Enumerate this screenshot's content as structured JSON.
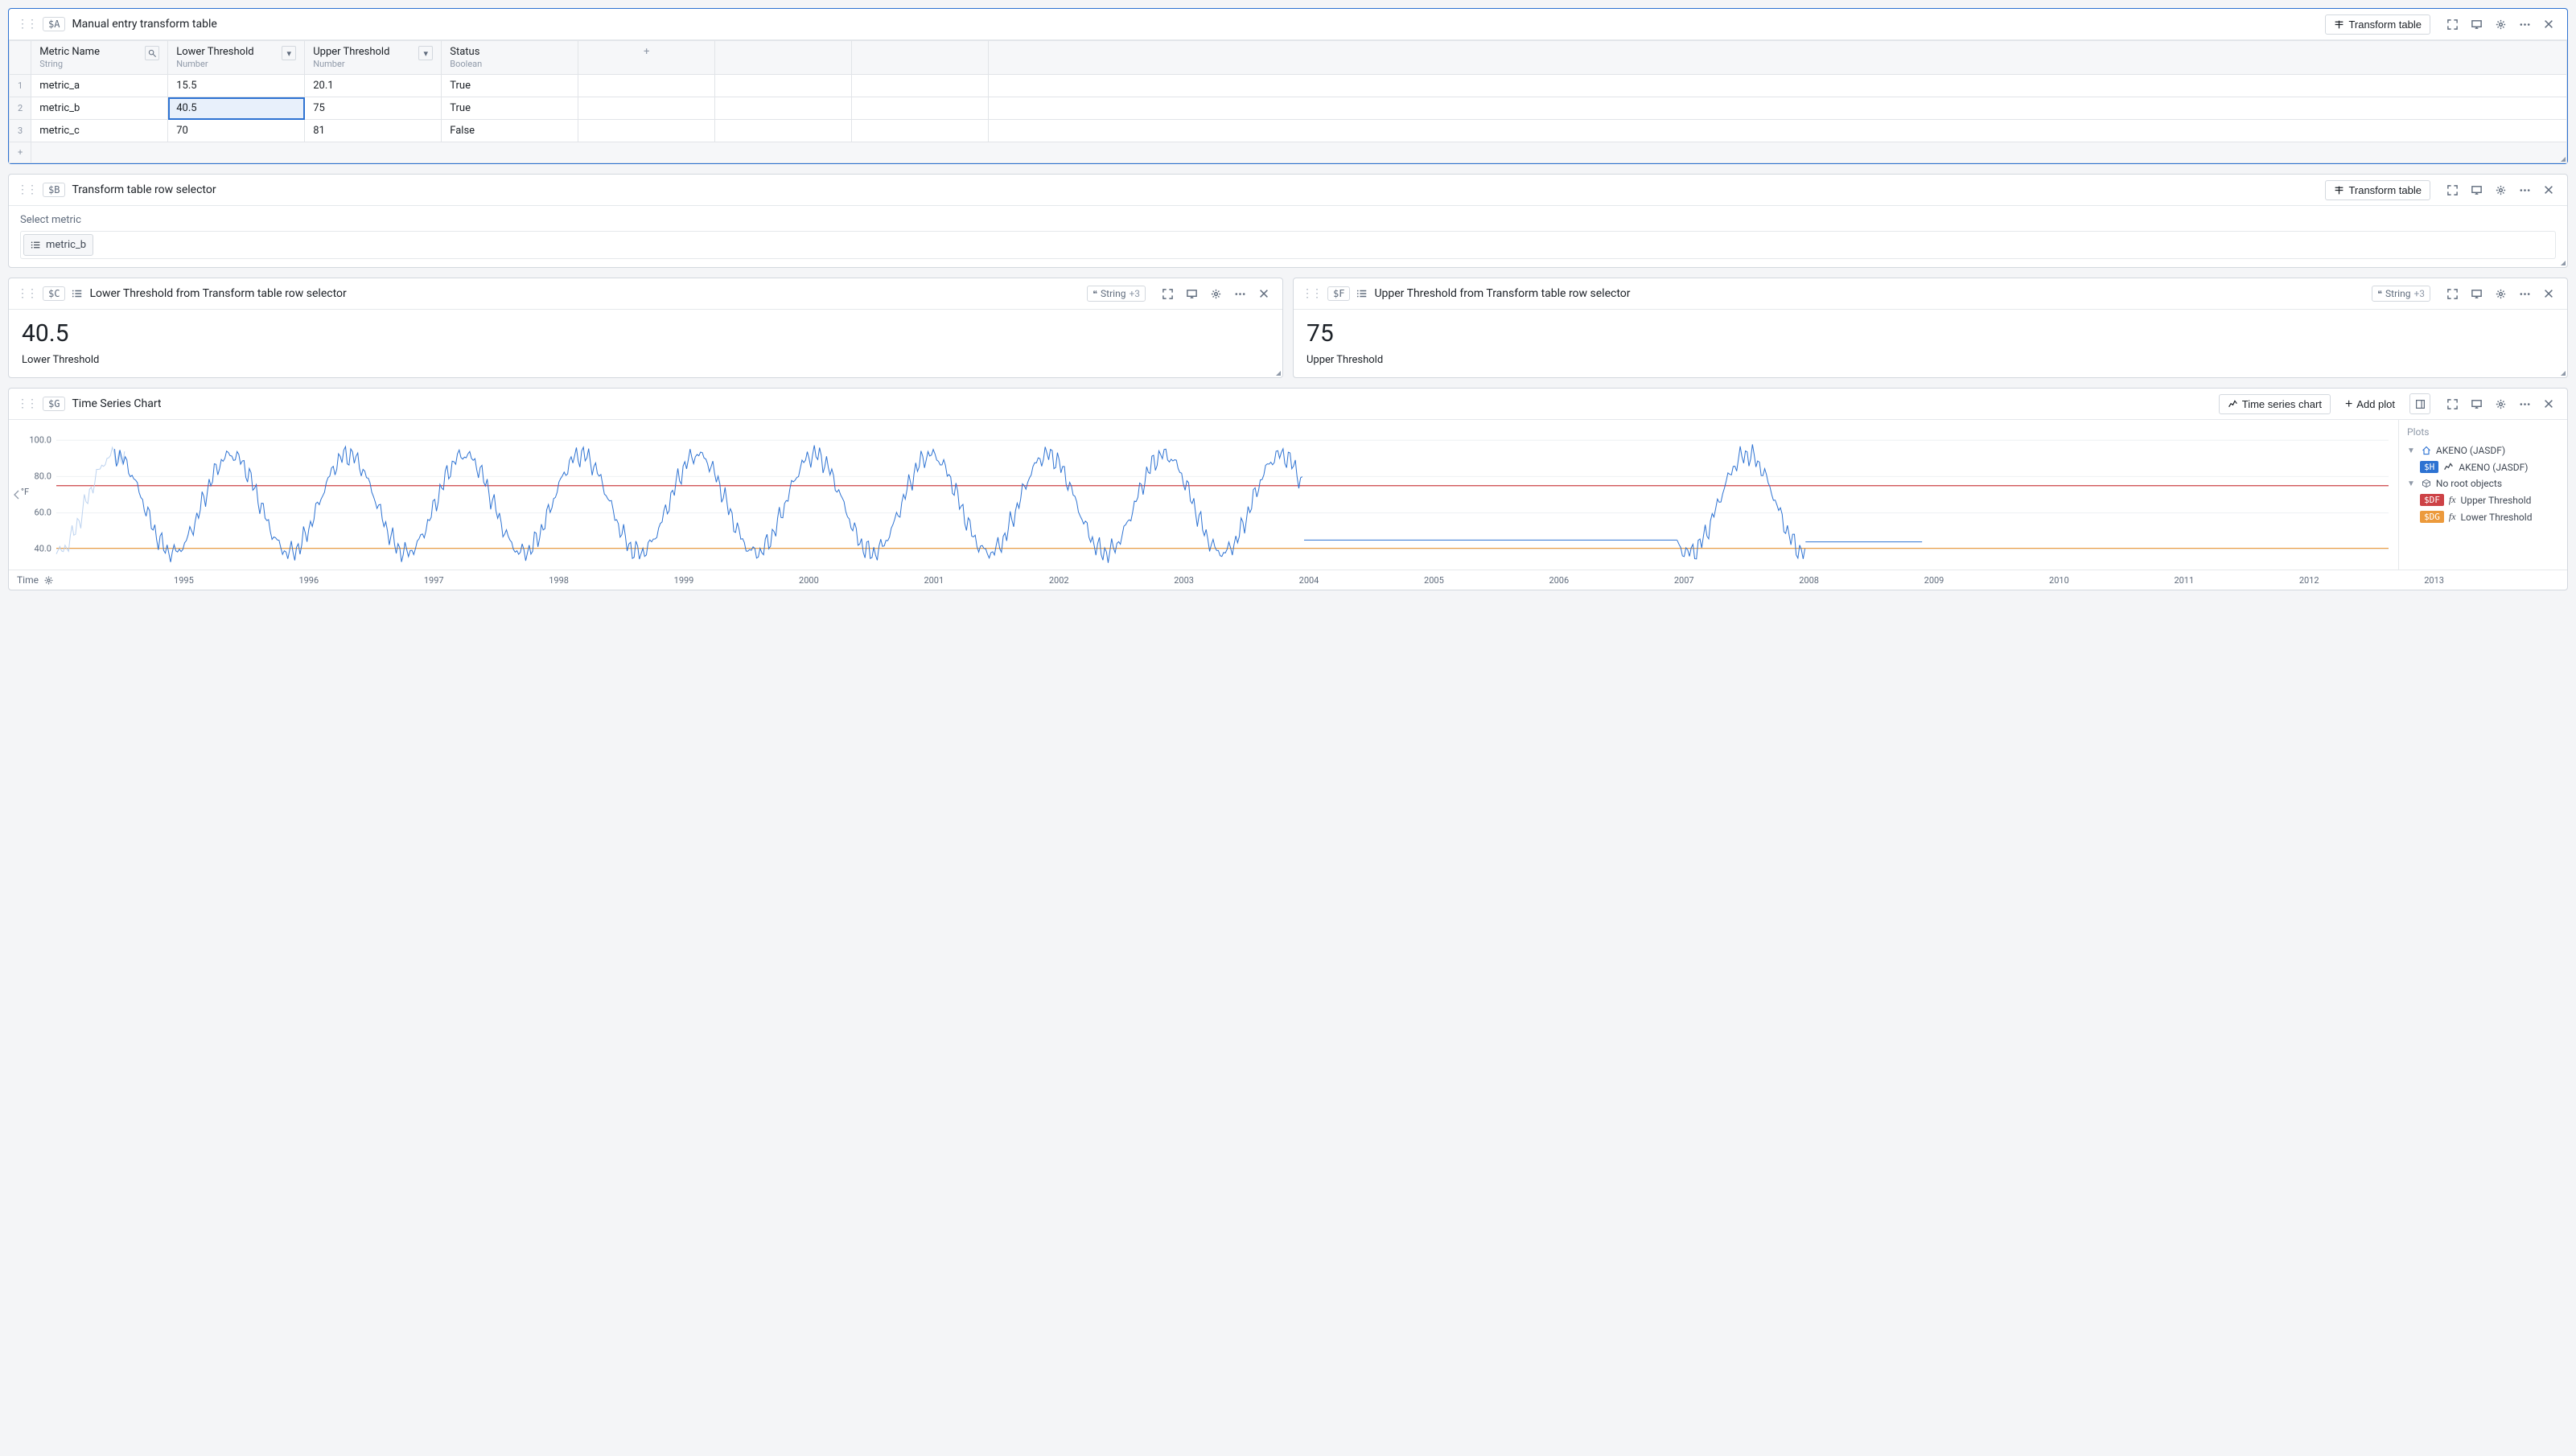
{
  "panel_a": {
    "var": "$A",
    "title": "Manual entry transform table",
    "transform_button": "Transform table",
    "columns": [
      {
        "name": "Metric Name",
        "type": "String",
        "icon": "lookup"
      },
      {
        "name": "Lower Threshold",
        "type": "Number",
        "icon": "dropdown"
      },
      {
        "name": "Upper Threshold",
        "type": "Number",
        "icon": "dropdown"
      },
      {
        "name": "Status",
        "type": "Boolean",
        "icon": "none"
      }
    ],
    "rows": [
      {
        "metric": "metric_a",
        "lower": "15.5",
        "upper": "20.1",
        "status": "True"
      },
      {
        "metric": "metric_b",
        "lower": "40.5",
        "upper": "75",
        "status": "True"
      },
      {
        "metric": "metric_c",
        "lower": "70",
        "upper": "81",
        "status": "False"
      }
    ],
    "selected_cell": {
      "row": 1,
      "col": "lower"
    }
  },
  "panel_b": {
    "var": "$B",
    "title": "Transform table row selector",
    "transform_button": "Transform table",
    "field_label": "Select metric",
    "selected_value": "metric_b"
  },
  "panel_c": {
    "var": "$C",
    "title": "Lower Threshold from Transform table row selector",
    "type_badge": "String",
    "type_extra": "+3",
    "value": "40.5",
    "label": "Lower Threshold"
  },
  "panel_f": {
    "var": "$F",
    "title": "Upper Threshold from Transform table row selector",
    "type_badge": "String",
    "type_extra": "+3",
    "value": "75",
    "label": "Upper Threshold"
  },
  "panel_g": {
    "var": "$G",
    "title": "Time Series Chart",
    "chart_type_button": "Time series chart",
    "add_plot_button": "Add plot",
    "time_label": "Time",
    "plots_heading": "Plots",
    "group_label": "AKENO (JASDF)",
    "no_root_label": "No root objects",
    "series_main": {
      "tag": "$H",
      "label": "AKENO (JASDF)"
    },
    "series_upper": {
      "tag": "$DF",
      "label": "Upper Threshold"
    },
    "series_lower": {
      "tag": "$DG",
      "label": "Lower Threshold"
    },
    "y_axis": {
      "min": 35,
      "max": 105,
      "ticks": [
        40,
        60,
        80,
        100
      ],
      "label": "°F"
    },
    "x_axis": {
      "min": 1994,
      "max": 2014,
      "ticks": [
        1995,
        1996,
        1997,
        1998,
        1999,
        2000,
        2001,
        2002,
        2003,
        2004,
        2005,
        2006,
        2007,
        2008,
        2009,
        2010,
        2011,
        2012,
        2013
      ]
    },
    "upper_threshold_value": 75,
    "lower_threshold_value": 40.5,
    "colors": {
      "series": "#2d72d2",
      "series_faded": "#bcd2ef",
      "upper": "#cd4246",
      "lower": "#ec9a3c",
      "grid": "#eef0f2",
      "axis_text": "#5f6b7c"
    }
  }
}
